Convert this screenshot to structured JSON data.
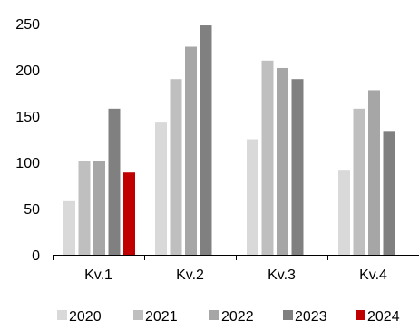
{
  "chart_data": {
    "type": "bar",
    "categories": [
      "Kv.1",
      "Kv.2",
      "Kv.3",
      "Kv.4"
    ],
    "series": [
      {
        "name": "2020",
        "color": "#d9d9d9",
        "values": [
          58,
          143,
          125,
          91
        ]
      },
      {
        "name": "2021",
        "color": "#bfbfbf",
        "values": [
          101,
          190,
          210,
          158
        ]
      },
      {
        "name": "2022",
        "color": "#a6a6a6",
        "values": [
          101,
          225,
          202,
          178
        ]
      },
      {
        "name": "2023",
        "color": "#808080",
        "values": [
          158,
          248,
          190,
          133
        ]
      },
      {
        "name": "2024",
        "color": "#c00000",
        "values": [
          89,
          null,
          null,
          null
        ]
      }
    ],
    "yticks": [
      "0",
      "50",
      "100",
      "150",
      "200",
      "250"
    ],
    "ylim": [
      0,
      250
    ],
    "title": "",
    "xlabel": "",
    "ylabel": "",
    "grid": false,
    "legend_position": "bottom"
  }
}
